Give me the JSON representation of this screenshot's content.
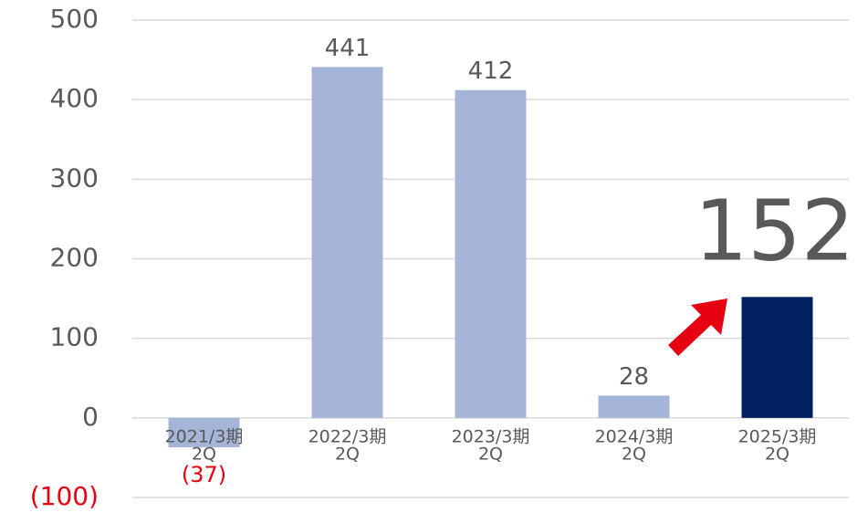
{
  "chart_data": {
    "type": "bar",
    "categories": [
      [
        "2021/3期",
        "2Q"
      ],
      [
        "2022/3期",
        "2Q"
      ],
      [
        "2023/3期",
        "2Q"
      ],
      [
        "2024/3期",
        "2Q"
      ],
      [
        "2025/3期",
        "2Q"
      ]
    ],
    "values": [
      -37,
      441,
      412,
      28,
      152
    ],
    "value_labels": [
      "(37)",
      "441",
      "412",
      "28",
      "152"
    ],
    "colors": [
      "#a5b5d8",
      "#a5b5d8",
      "#a5b5d8",
      "#a5b5d8",
      "#002060"
    ],
    "ylim": [
      -100,
      500
    ],
    "yticks": [
      {
        "value": -100,
        "label": "(100)"
      },
      0,
      100,
      200,
      300,
      400,
      500
    ],
    "grid": true
  }
}
